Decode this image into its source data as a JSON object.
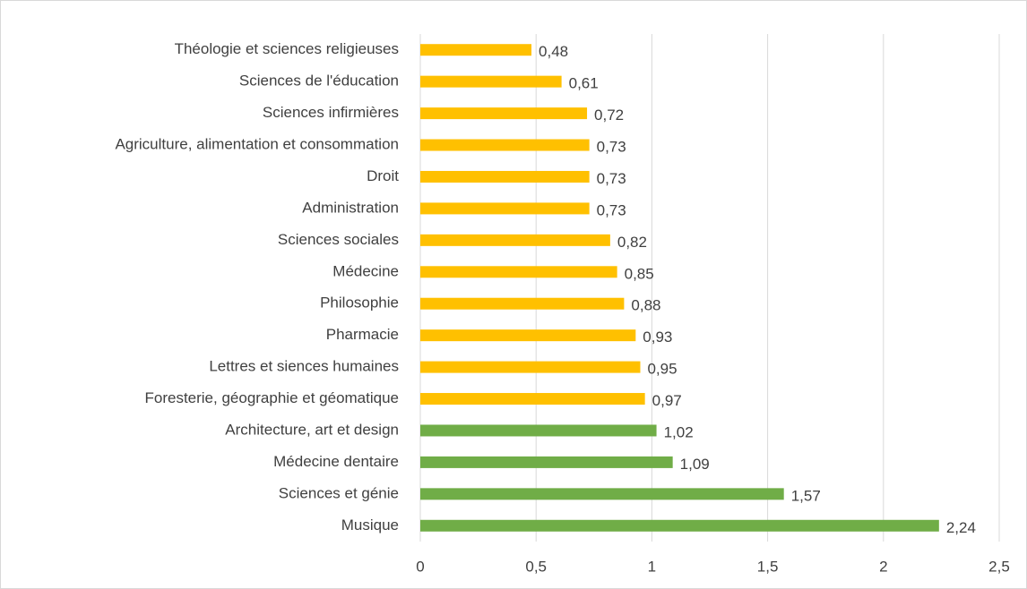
{
  "chart_data": {
    "type": "bar",
    "orientation": "horizontal",
    "categories": [
      "Théologie et sciences religieuses",
      "Sciences de l'éducation",
      "Sciences infirmières",
      "Agriculture, alimentation et consommation",
      "Droit",
      "Administration",
      "Sciences sociales",
      "Médecine",
      "Philosophie",
      "Pharmacie",
      "Lettres et siences humaines",
      "Foresterie, géographie et géomatique",
      "Architecture, art et design",
      "Médecine dentaire",
      "Sciences et génie",
      "Musique"
    ],
    "values": [
      0.48,
      0.61,
      0.72,
      0.73,
      0.73,
      0.73,
      0.82,
      0.85,
      0.88,
      0.93,
      0.95,
      0.97,
      1.02,
      1.09,
      1.57,
      2.24
    ],
    "value_labels": [
      "0,48",
      "0,61",
      "0,72",
      "0,73",
      "0,73",
      "0,73",
      "0,82",
      "0,85",
      "0,88",
      "0,93",
      "0,95",
      "0,97",
      "1,02",
      "1,09",
      "1,57",
      "2,24"
    ],
    "colors": [
      "#FFC000",
      "#FFC000",
      "#FFC000",
      "#FFC000",
      "#FFC000",
      "#FFC000",
      "#FFC000",
      "#FFC000",
      "#FFC000",
      "#FFC000",
      "#FFC000",
      "#FFC000",
      "#70AD47",
      "#70AD47",
      "#70AD47",
      "#70AD47"
    ],
    "xlim": [
      0,
      2.5
    ],
    "xticks": [
      0,
      {
        "value": 0.5,
        "label": "0,5"
      },
      1,
      {
        "value": 1.5,
        "label": "1,5"
      },
      2,
      {
        "value": 2.5,
        "label": "2,5"
      }
    ],
    "grid": true
  }
}
